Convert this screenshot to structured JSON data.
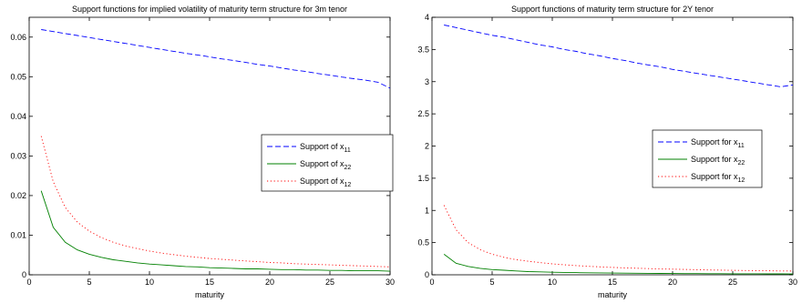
{
  "chart_data": [
    {
      "type": "line",
      "title": "Support functions for implied volatility of  maturity term structure for 3m tenor",
      "xlabel": "maturity",
      "ylabel": "",
      "xlim": [
        0,
        30
      ],
      "ylim": [
        0,
        0.065
      ],
      "xticks": [
        0,
        5,
        10,
        15,
        20,
        25,
        30
      ],
      "yticks": [
        0,
        0.01,
        0.02,
        0.03,
        0.04,
        0.05,
        0.06
      ],
      "ytick_labels": [
        "0",
        "0.01",
        "0.02",
        "0.03",
        "0.04",
        "0.05",
        "0.06"
      ],
      "grid": false,
      "legend_position": "right",
      "x": [
        1,
        2,
        3,
        4,
        5,
        6,
        7,
        8,
        9,
        10,
        11,
        12,
        13,
        14,
        15,
        16,
        17,
        18,
        19,
        20,
        21,
        22,
        23,
        24,
        25,
        26,
        27,
        28,
        29,
        30
      ],
      "series": [
        {
          "name_base": "Support of x",
          "name_sub": "11",
          "color": "#0000ff",
          "style": "dashed",
          "values": [
            0.0619,
            0.0614,
            0.0609,
            0.0604,
            0.0599,
            0.0594,
            0.0589,
            0.0584,
            0.0579,
            0.0574,
            0.0569,
            0.0564,
            0.0559,
            0.0555,
            0.055,
            0.0545,
            0.0541,
            0.0536,
            0.0531,
            0.0527,
            0.0522,
            0.0517,
            0.0513,
            0.0508,
            0.0504,
            0.0499,
            0.0495,
            0.0491,
            0.0486,
            0.0471
          ]
        },
        {
          "name_base": "Support of x",
          "name_sub": "22",
          "color": "#008000",
          "style": "solid",
          "values": [
            0.0212,
            0.012,
            0.0082,
            0.0063,
            0.0052,
            0.0044,
            0.0038,
            0.0034,
            0.003,
            0.0027,
            0.0025,
            0.0023,
            0.0021,
            0.002,
            0.0018,
            0.0017,
            0.0016,
            0.0015,
            0.0015,
            0.0014,
            0.0013,
            0.0013,
            0.0012,
            0.0012,
            0.0011,
            0.0011,
            0.001,
            0.001,
            0.001,
            0.0009
          ]
        },
        {
          "name_base": "Support of x",
          "name_sub": "12",
          "color": "#ff0000",
          "style": "dotted",
          "values": [
            0.035,
            0.0235,
            0.017,
            0.0133,
            0.011,
            0.0094,
            0.0082,
            0.0073,
            0.0066,
            0.006,
            0.0055,
            0.0051,
            0.0047,
            0.0044,
            0.0041,
            0.0039,
            0.0037,
            0.0035,
            0.0033,
            0.0031,
            0.003,
            0.0028,
            0.0027,
            0.0026,
            0.0025,
            0.0024,
            0.0023,
            0.0022,
            0.0021,
            0.002
          ]
        }
      ]
    },
    {
      "type": "line",
      "title": "Support functions of maturity term structure for 2Y tenor",
      "xlabel": "maturity",
      "ylabel": "",
      "xlim": [
        0,
        30
      ],
      "ylim": [
        0,
        4
      ],
      "xticks": [
        0,
        5,
        10,
        15,
        20,
        25,
        30
      ],
      "yticks": [
        0,
        0.5,
        1,
        1.5,
        2,
        2.5,
        3,
        3.5,
        4
      ],
      "ytick_labels": [
        "0",
        "0.5",
        "1",
        "1.5",
        "2",
        "2.5",
        "3",
        "3.5",
        "4"
      ],
      "grid": false,
      "legend_position": "right",
      "x": [
        1,
        2,
        3,
        4,
        5,
        6,
        7,
        8,
        9,
        10,
        11,
        12,
        13,
        14,
        15,
        16,
        17,
        18,
        19,
        20,
        21,
        22,
        23,
        24,
        25,
        26,
        27,
        28,
        29,
        30
      ],
      "series": [
        {
          "name_base": "Support for x",
          "name_sub": "11",
          "color": "#0000ff",
          "style": "dashed",
          "values": [
            3.88,
            3.84,
            3.8,
            3.76,
            3.72,
            3.69,
            3.65,
            3.61,
            3.57,
            3.54,
            3.5,
            3.47,
            3.43,
            3.4,
            3.36,
            3.33,
            3.29,
            3.26,
            3.23,
            3.19,
            3.16,
            3.13,
            3.1,
            3.07,
            3.04,
            3.01,
            2.98,
            2.95,
            2.92,
            2.95
          ]
        },
        {
          "name_base": "Support for x",
          "name_sub": "22",
          "color": "#008000",
          "style": "solid",
          "values": [
            0.32,
            0.18,
            0.13,
            0.1,
            0.08,
            0.07,
            0.06,
            0.05,
            0.045,
            0.04,
            0.037,
            0.034,
            0.031,
            0.029,
            0.027,
            0.025,
            0.024,
            0.022,
            0.021,
            0.02,
            0.019,
            0.018,
            0.017,
            0.017,
            0.016,
            0.015,
            0.015,
            0.014,
            0.014,
            0.013
          ]
        },
        {
          "name_base": "Support for x",
          "name_sub": "12",
          "color": "#ff0000",
          "style": "dotted",
          "values": [
            1.08,
            0.7,
            0.5,
            0.39,
            0.32,
            0.27,
            0.235,
            0.21,
            0.19,
            0.17,
            0.155,
            0.143,
            0.132,
            0.123,
            0.115,
            0.108,
            0.102,
            0.096,
            0.091,
            0.087,
            0.083,
            0.079,
            0.075,
            0.072,
            0.069,
            0.066,
            0.064,
            0.062,
            0.06,
            0.058
          ]
        }
      ]
    }
  ]
}
